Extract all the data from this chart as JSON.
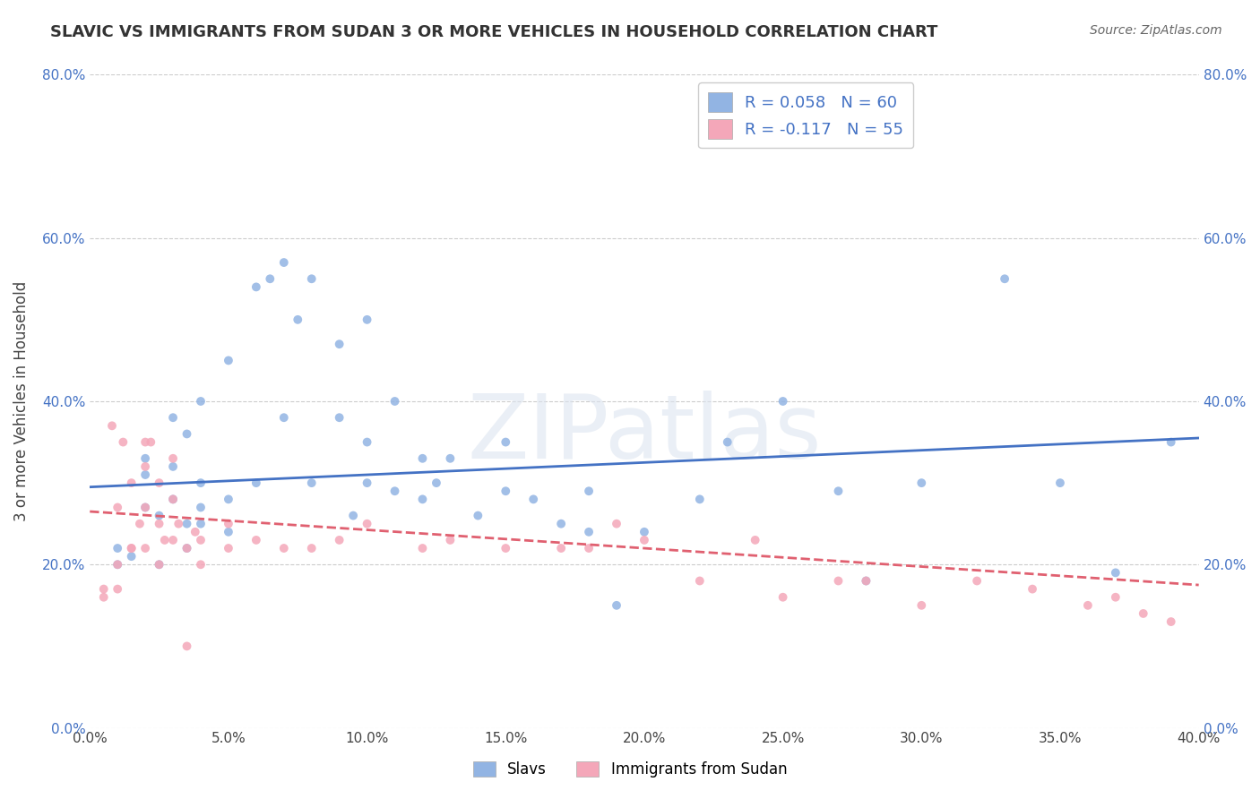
{
  "title": "SLAVIC VS IMMIGRANTS FROM SUDAN 3 OR MORE VEHICLES IN HOUSEHOLD CORRELATION CHART",
  "source": "Source: ZipAtlas.com",
  "ylabel": "3 or more Vehicles in Household",
  "xlabel": "",
  "xlim": [
    0.0,
    0.4
  ],
  "ylim": [
    0.0,
    0.8
  ],
  "xticks": [
    0.0,
    0.05,
    0.1,
    0.15,
    0.2,
    0.25,
    0.3,
    0.35,
    0.4
  ],
  "yticks": [
    0.0,
    0.2,
    0.4,
    0.6,
    0.8
  ],
  "xtick_labels": [
    "0.0%",
    "5.0%",
    "10.0%",
    "15.0%",
    "20.0%",
    "25.0%",
    "30.0%",
    "35.0%",
    "40.0%"
  ],
  "ytick_labels": [
    "0.0%",
    "20.0%",
    "40.0%",
    "60.0%",
    "80.0%"
  ],
  "slavs_color": "#92b4e3",
  "sudan_color": "#f4a7b9",
  "slavs_label": "Slavs",
  "sudan_label": "Immigrants from Sudan",
  "legend_r_slavs": "R = 0.058",
  "legend_n_slavs": "N = 60",
  "legend_r_sudan": "R = -0.117",
  "legend_n_sudan": "N = 55",
  "slavs_trendline_color": "#4472c4",
  "sudan_trendline_color": "#e06070",
  "watermark": "ZIPatlas",
  "slavs_x": [
    0.01,
    0.01,
    0.015,
    0.02,
    0.02,
    0.02,
    0.025,
    0.025,
    0.03,
    0.03,
    0.03,
    0.035,
    0.035,
    0.035,
    0.04,
    0.04,
    0.04,
    0.04,
    0.05,
    0.05,
    0.05,
    0.06,
    0.06,
    0.065,
    0.07,
    0.07,
    0.075,
    0.08,
    0.08,
    0.09,
    0.09,
    0.095,
    0.1,
    0.1,
    0.1,
    0.11,
    0.11,
    0.12,
    0.12,
    0.125,
    0.13,
    0.14,
    0.15,
    0.15,
    0.16,
    0.17,
    0.18,
    0.18,
    0.19,
    0.2,
    0.22,
    0.23,
    0.25,
    0.27,
    0.28,
    0.3,
    0.33,
    0.35,
    0.37,
    0.39
  ],
  "slavs_y": [
    0.2,
    0.22,
    0.21,
    0.27,
    0.31,
    0.33,
    0.2,
    0.26,
    0.28,
    0.32,
    0.38,
    0.22,
    0.25,
    0.36,
    0.25,
    0.27,
    0.3,
    0.4,
    0.24,
    0.28,
    0.45,
    0.3,
    0.54,
    0.55,
    0.38,
    0.57,
    0.5,
    0.3,
    0.55,
    0.38,
    0.47,
    0.26,
    0.3,
    0.35,
    0.5,
    0.29,
    0.4,
    0.28,
    0.33,
    0.3,
    0.33,
    0.26,
    0.29,
    0.35,
    0.28,
    0.25,
    0.24,
    0.29,
    0.15,
    0.24,
    0.28,
    0.35,
    0.4,
    0.29,
    0.18,
    0.3,
    0.55,
    0.3,
    0.19,
    0.35
  ],
  "sudan_x": [
    0.005,
    0.008,
    0.01,
    0.01,
    0.012,
    0.015,
    0.015,
    0.018,
    0.02,
    0.02,
    0.02,
    0.022,
    0.025,
    0.025,
    0.025,
    0.027,
    0.03,
    0.03,
    0.03,
    0.032,
    0.035,
    0.038,
    0.04,
    0.04,
    0.05,
    0.05,
    0.06,
    0.07,
    0.08,
    0.09,
    0.1,
    0.12,
    0.13,
    0.15,
    0.17,
    0.18,
    0.19,
    0.2,
    0.22,
    0.24,
    0.25,
    0.27,
    0.28,
    0.3,
    0.32,
    0.34,
    0.36,
    0.37,
    0.38,
    0.39,
    0.005,
    0.01,
    0.015,
    0.02,
    0.035
  ],
  "sudan_y": [
    0.17,
    0.37,
    0.2,
    0.27,
    0.35,
    0.22,
    0.3,
    0.25,
    0.22,
    0.27,
    0.32,
    0.35,
    0.2,
    0.25,
    0.3,
    0.23,
    0.23,
    0.28,
    0.33,
    0.25,
    0.22,
    0.24,
    0.2,
    0.23,
    0.22,
    0.25,
    0.23,
    0.22,
    0.22,
    0.23,
    0.25,
    0.22,
    0.23,
    0.22,
    0.22,
    0.22,
    0.25,
    0.23,
    0.18,
    0.23,
    0.16,
    0.18,
    0.18,
    0.15,
    0.18,
    0.17,
    0.15,
    0.16,
    0.14,
    0.13,
    0.16,
    0.17,
    0.22,
    0.35,
    0.1
  ],
  "slavs_trend_x": [
    0.0,
    0.4
  ],
  "slavs_trend_y": [
    0.295,
    0.355
  ],
  "sudan_trend_x": [
    0.0,
    0.4
  ],
  "sudan_trend_y": [
    0.265,
    0.175
  ]
}
